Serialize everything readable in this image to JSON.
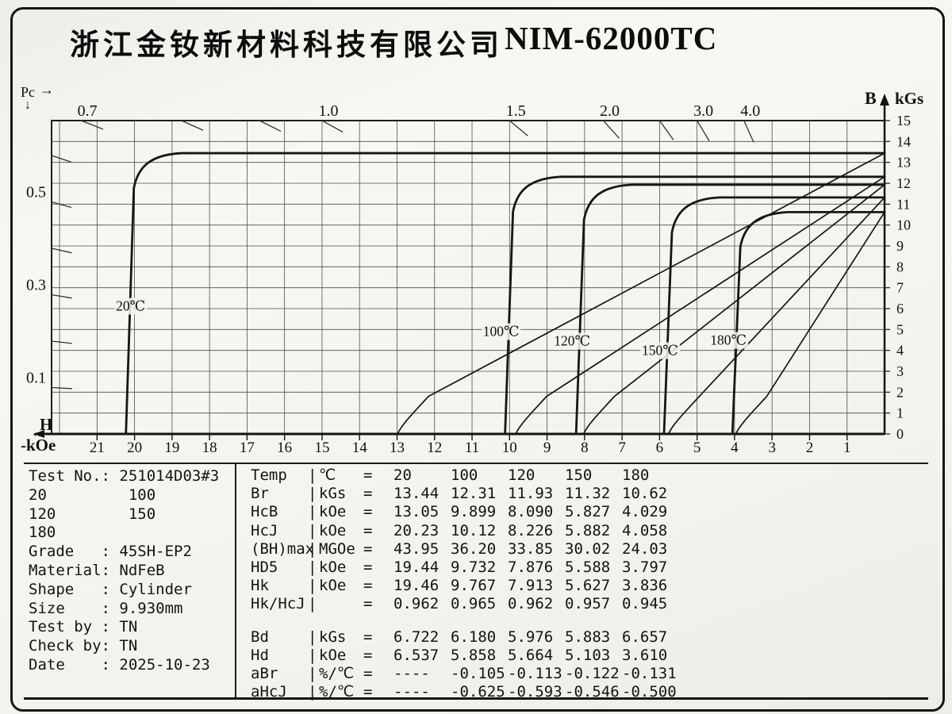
{
  "header": {
    "company": "浙江金钕新材料科技有限公司",
    "model": "NIM-62000TC"
  },
  "chart_data": {
    "type": "line",
    "title": "Demagnetization curves (second quadrant) at five temperatures",
    "x_axis": {
      "label": "H",
      "unit": "-kOe",
      "ticks": [
        21,
        20,
        19,
        18,
        17,
        16,
        15,
        14,
        13,
        12,
        11,
        10,
        9,
        8,
        7,
        6,
        5,
        4,
        3,
        2,
        1
      ],
      "range_kOe": [
        0,
        22.2
      ],
      "direction": "values increase right-to-left"
    },
    "y_axis": {
      "label": "B",
      "unit": "kGs",
      "ticks": [
        15,
        14,
        13,
        12,
        11,
        10,
        9,
        8,
        7,
        6,
        5,
        4,
        3,
        2,
        1,
        0
      ],
      "range_kGs": [
        0,
        15
      ]
    },
    "pc_load_lines": {
      "label": "Pc",
      "top_ticks": [
        0.7,
        0.8,
        0.9,
        1.0,
        1.5,
        2.0,
        2.5,
        3.0,
        4.0
      ],
      "top_labeled": [
        "0.7",
        "1.0",
        "1.5",
        "2.0",
        "3.0",
        "4.0"
      ],
      "left_ticks": [
        0.6,
        0.5,
        0.4,
        0.3,
        0.2,
        0.1
      ],
      "left_labeled": [
        "0.5",
        "0.3",
        "0.1"
      ]
    },
    "labels": {
      "pc": "Pc",
      "pc_arrow": "→",
      "pc_down_arrow": "↓",
      "h": "H",
      "h_arrow": "←",
      "h_unit": "-kOe",
      "b": "B",
      "b_unit": "kGs"
    },
    "series": [
      {
        "name": "20℃",
        "temp_c": 20,
        "Br_kGs": 13.44,
        "HcB_kOe": 13.05,
        "HcJ_kOe": 20.23,
        "label_b_kGs": 6.1
      },
      {
        "name": "100℃",
        "temp_c": 100,
        "Br_kGs": 12.31,
        "HcB_kOe": 9.899,
        "HcJ_kOe": 10.12,
        "label_b_kGs": 4.9
      },
      {
        "name": "120℃",
        "temp_c": 120,
        "Br_kGs": 11.93,
        "HcB_kOe": 8.09,
        "HcJ_kOe": 8.226,
        "label_b_kGs": 4.45
      },
      {
        "name": "150℃",
        "temp_c": 150,
        "Br_kGs": 11.32,
        "HcB_kOe": 5.827,
        "HcJ_kOe": 5.882,
        "label_b_kGs": 4.0
      },
      {
        "name": "180℃",
        "temp_c": 180,
        "Br_kGs": 10.62,
        "HcB_kOe": 4.029,
        "HcJ_kOe": 4.058,
        "label_b_kGs": 4.5
      }
    ],
    "grid": "1 kOe × 1 kGs cells, grid on"
  },
  "info": {
    "lines": [
      "Test No.: 251014D03#3",
      "20         100",
      "120        150",
      "180",
      "Grade   : 45SH-EP2",
      "Material: NdFeB",
      "Shape   : Cylinder",
      "Size    : 9.930mm",
      "Test by : TN",
      "Check by: TN",
      "Date    : 2025-10-23"
    ]
  },
  "table": {
    "rows": [
      {
        "name": "Temp",
        "unit": "℃",
        "eq": "=",
        "values": [
          "20",
          "100",
          "120",
          "150",
          "180"
        ]
      },
      {
        "name": "Br",
        "unit": "kGs",
        "eq": "=",
        "values": [
          "13.44",
          "12.31",
          "11.93",
          "11.32",
          "10.62"
        ]
      },
      {
        "name": "HcB",
        "unit": "kOe",
        "eq": "=",
        "values": [
          "13.05",
          "9.899",
          "8.090",
          "5.827",
          "4.029"
        ]
      },
      {
        "name": "HcJ",
        "unit": "kOe",
        "eq": "=",
        "values": [
          "20.23",
          "10.12",
          "8.226",
          "5.882",
          "4.058"
        ]
      },
      {
        "name": "(BH)max",
        "unit": "MGOe",
        "eq": "=",
        "values": [
          "43.95",
          "36.20",
          "33.85",
          "30.02",
          "24.03"
        ]
      },
      {
        "name": "HD5",
        "unit": "kOe",
        "eq": "=",
        "values": [
          "19.44",
          "9.732",
          "7.876",
          "5.588",
          "3.797"
        ]
      },
      {
        "name": "Hk",
        "unit": "kOe",
        "eq": "=",
        "values": [
          "19.46",
          "9.767",
          "7.913",
          "5.627",
          "3.836"
        ]
      },
      {
        "name": "Hk/HcJ",
        "unit": "",
        "eq": "=",
        "values": [
          "0.962",
          "0.965",
          "0.962",
          "0.957",
          "0.945"
        ]
      },
      {
        "spacer": true
      },
      {
        "name": "Bd",
        "unit": "kGs",
        "eq": "=",
        "values": [
          "6.722",
          "6.180",
          "5.976",
          "5.883",
          "6.657"
        ]
      },
      {
        "name": "Hd",
        "unit": "kOe",
        "eq": "=",
        "values": [
          "6.537",
          "5.858",
          "5.664",
          "5.103",
          "3.610"
        ]
      },
      {
        "name": "aBr",
        "unit": "%/℃",
        "eq": "=",
        "values": [
          "----",
          "-0.105",
          "-0.113",
          "-0.122",
          "-0.131"
        ]
      },
      {
        "name": "aHcJ",
        "unit": "%/℃",
        "eq": "=",
        "values": [
          "----",
          "-0.625",
          "-0.593",
          "-0.546",
          "-0.500"
        ]
      }
    ]
  }
}
